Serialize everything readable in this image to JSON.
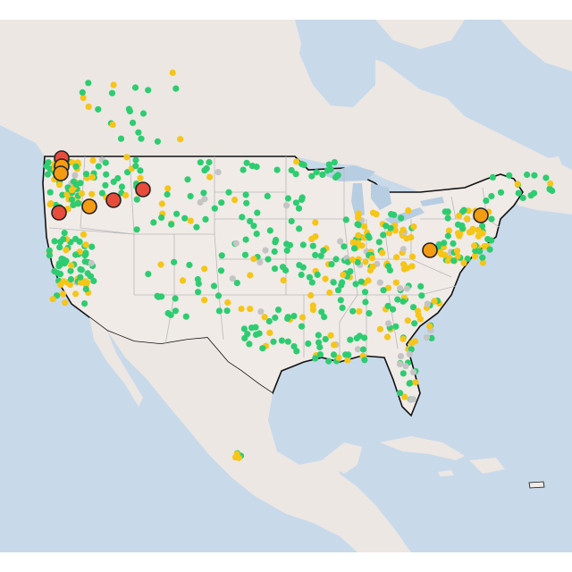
{
  "map": {
    "colors": {
      "water": "#c8d9ea",
      "land_us": "#f0ebe7",
      "land_other": "#ece7e3",
      "state_border": "#b9b9b9",
      "national_border": "#111111",
      "lakes": "#b7cde2"
    },
    "legend_categories": [
      {
        "key": "good",
        "color": "#2ecc71"
      },
      {
        "key": "moderate",
        "color": "#f5c518"
      },
      {
        "key": "usg",
        "color": "#f39c12"
      },
      {
        "key": "unhealthy",
        "color": "#e74c3c"
      },
      {
        "key": "nodata",
        "color": "#c4c4c4"
      }
    ],
    "highlighted_markers": [
      {
        "category": "unhealthy",
        "size": "large"
      },
      {
        "category": "usg",
        "size": "large"
      },
      {
        "category": "usg",
        "size": "large"
      },
      {
        "category": "unhealthy",
        "size": "large"
      },
      {
        "category": "usg",
        "size": "large"
      },
      {
        "category": "unhealthy",
        "size": "large"
      },
      {
        "category": "unhealthy",
        "size": "large"
      },
      {
        "category": "usg",
        "size": "large"
      },
      {
        "category": "usg",
        "size": "large"
      }
    ]
  }
}
